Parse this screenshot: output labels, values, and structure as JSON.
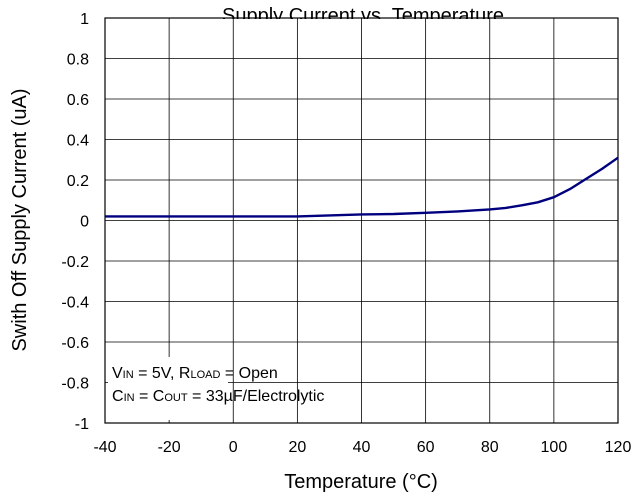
{
  "chart_data": {
    "type": "line",
    "title": "Supply Current vs. Temperature",
    "xlabel": "Temperature (°C)",
    "ylabel": "Swith Off Supply Current (uA)",
    "xlim": [
      -40,
      120
    ],
    "ylim": [
      -1,
      1
    ],
    "x_ticks": [
      "-40",
      "-20",
      "0",
      "20",
      "40",
      "60",
      "80",
      "100",
      "120"
    ],
    "y_ticks": [
      "1",
      "0.8",
      "0.6",
      "0.4",
      "0.2",
      "0",
      "-0.2",
      "-0.4",
      "-0.6",
      "-0.8",
      "-1"
    ],
    "grid": true,
    "legend": "none",
    "line_color": "#00007f",
    "series": [
      {
        "x": [
          -40,
          -20,
          0,
          20,
          30,
          40,
          50,
          60,
          70,
          80,
          85,
          90,
          95,
          100,
          105,
          110,
          115,
          120
        ],
        "y": [
          0.02,
          0.02,
          0.02,
          0.02,
          0.025,
          0.03,
          0.032,
          0.038,
          0.045,
          0.055,
          0.062,
          0.075,
          0.09,
          0.115,
          0.155,
          0.205,
          0.255,
          0.31
        ]
      }
    ],
    "annotation": {
      "line1": {
        "v": "V",
        "vsub": "IN",
        "mid": " = 5V, R",
        "rsub": "LOAD",
        "end": " = Open"
      },
      "line2": {
        "c1": "C",
        "c1sub": "IN",
        "mid": " = C",
        "c2sub": "OUT",
        "end": " = 33µF/Electrolytic"
      }
    }
  }
}
